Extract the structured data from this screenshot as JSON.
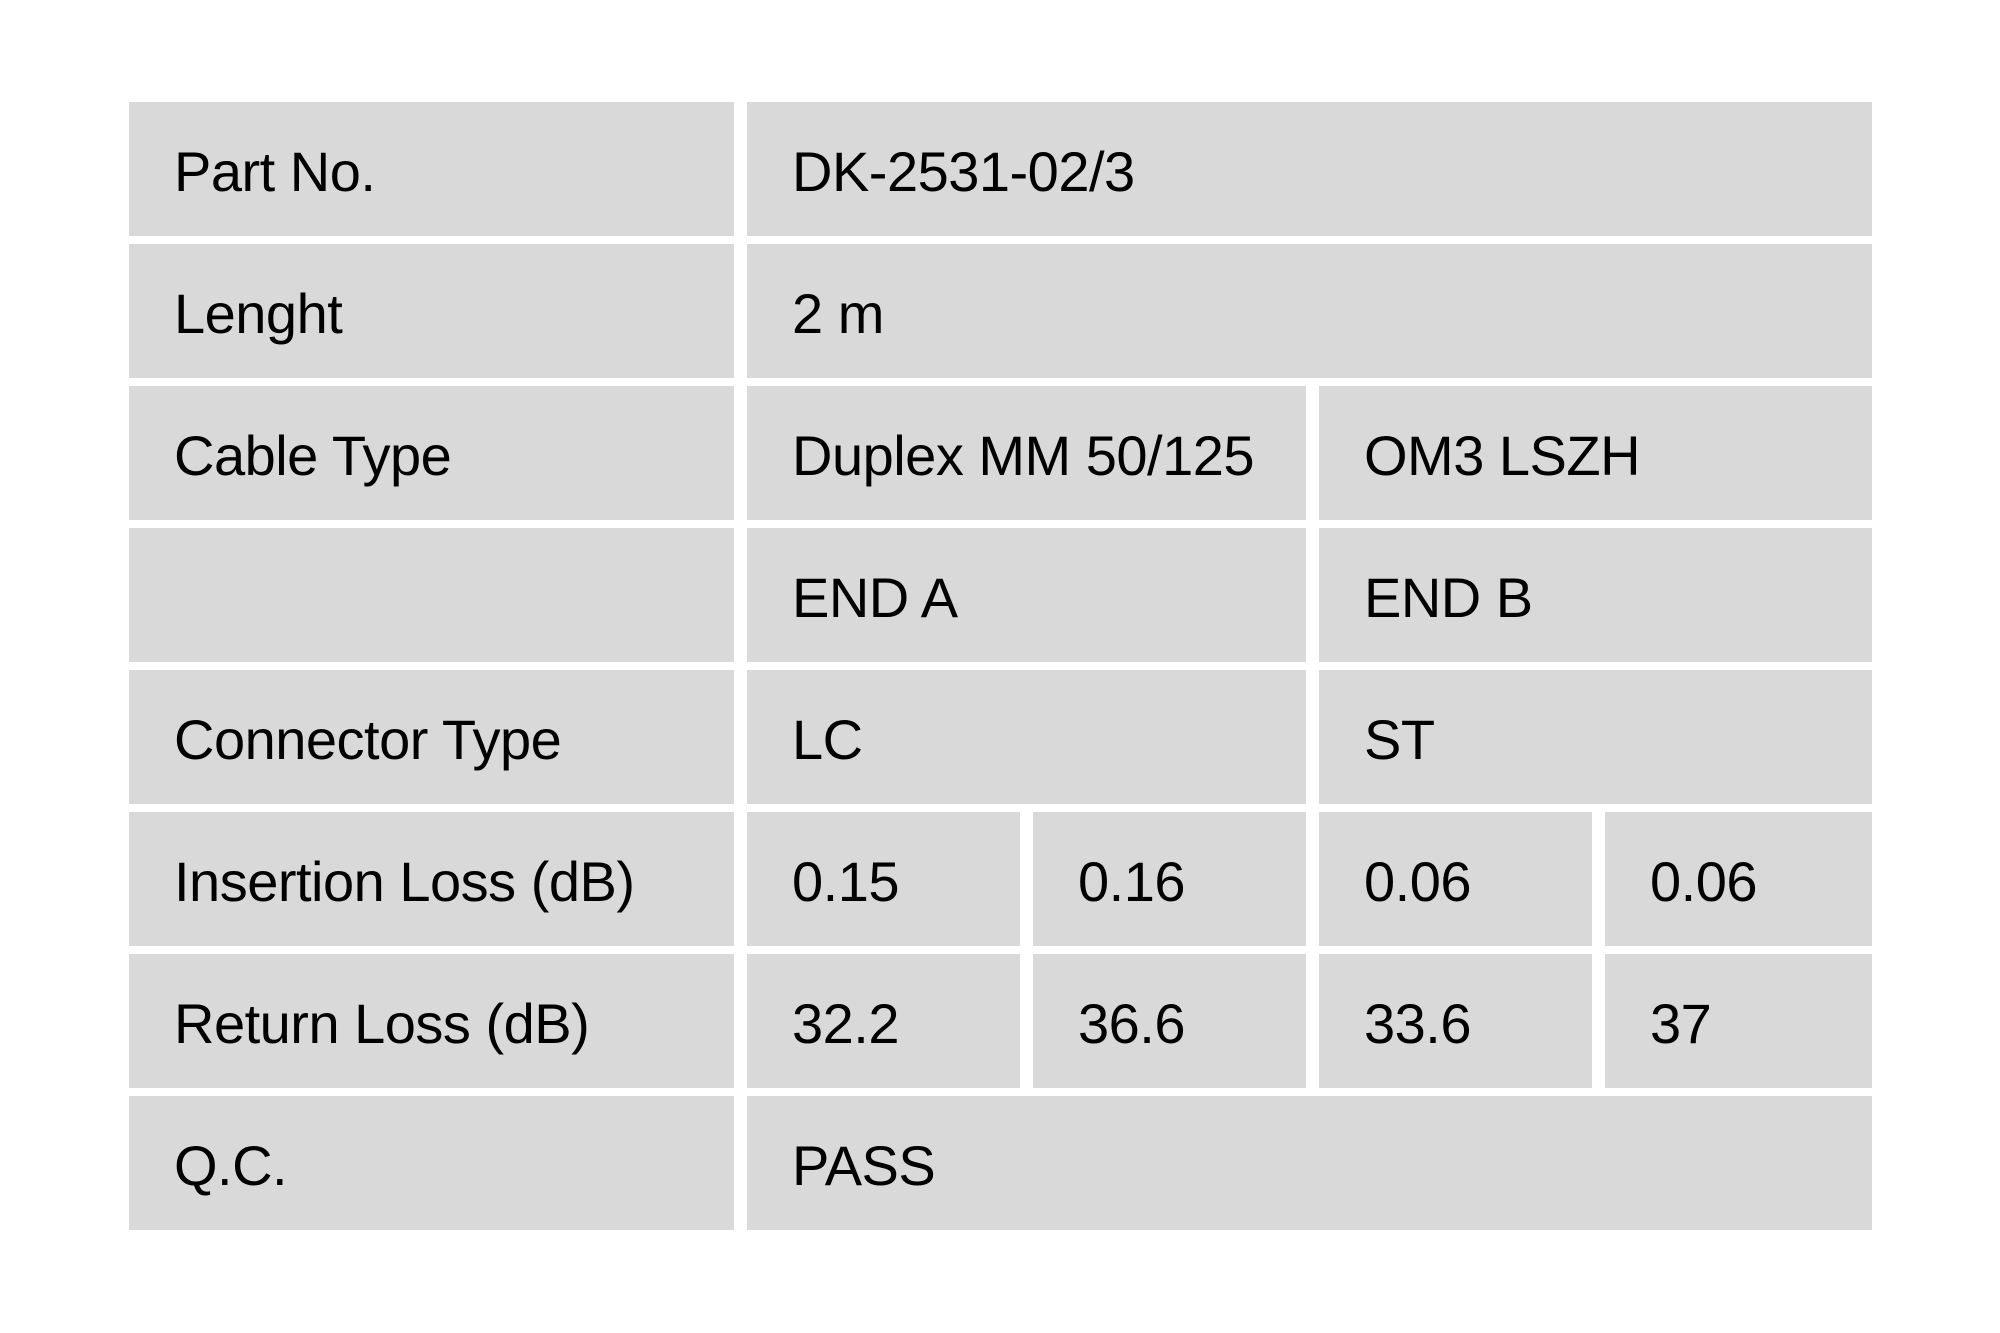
{
  "colors": {
    "page_bg": "#ffffff",
    "cell_bg": "#d9d9d9",
    "text": "#000000"
  },
  "table": {
    "rows": [
      {
        "label": "Part No.",
        "values": [
          "DK-2531-02/3"
        ]
      },
      {
        "label": "Lenght",
        "values": [
          "2 m"
        ]
      },
      {
        "label": "Cable Type",
        "values": [
          "Duplex MM 50/125",
          "OM3 LSZH"
        ]
      },
      {
        "label": "",
        "values": [
          "END A",
          "END B"
        ]
      },
      {
        "label": "Connector Type",
        "values": [
          "LC",
          "ST"
        ]
      },
      {
        "label": "Insertion Loss (dB)",
        "values": [
          "0.15",
          "0.16",
          "0.06",
          "0.06"
        ]
      },
      {
        "label": "Return Loss (dB)",
        "values": [
          "32.2",
          "36.6",
          "33.6",
          "37"
        ]
      },
      {
        "label": "Q.C.",
        "values": [
          "PASS"
        ]
      }
    ]
  }
}
